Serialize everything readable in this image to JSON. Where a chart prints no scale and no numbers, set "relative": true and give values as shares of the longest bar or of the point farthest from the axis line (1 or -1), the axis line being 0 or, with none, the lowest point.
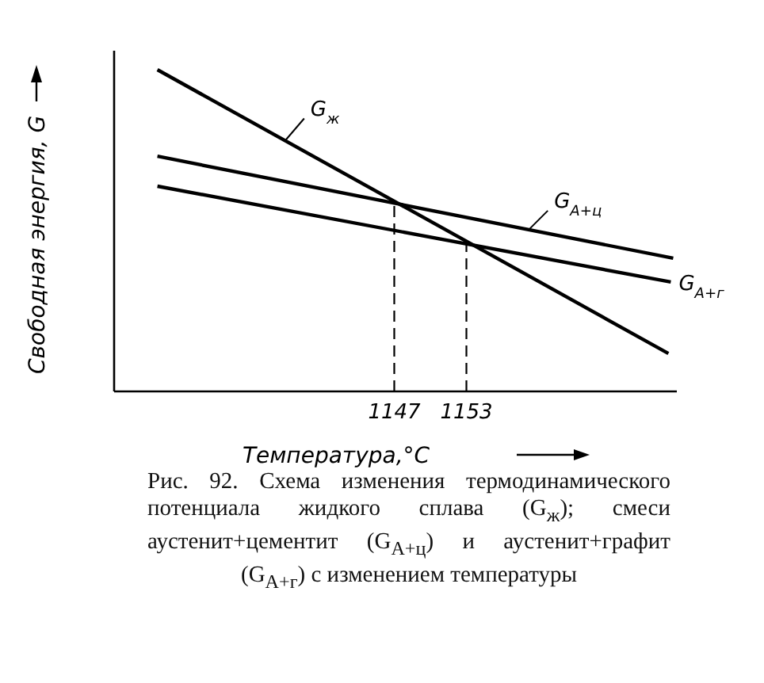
{
  "chart_data": {
    "type": "line",
    "relative": true,
    "xlabel": "Температура,°C",
    "ylabel": "Свободная энергия, G",
    "xlim": [
      1123.7,
      1170.5
    ],
    "xticks": [
      1147,
      1153
    ],
    "legend": false,
    "grid": false,
    "marker": "none",
    "line_style": "solid",
    "series": [
      {
        "name": "G$_{ж}$",
        "color": "#000000",
        "x": [
          1127.3,
          1169.8
        ],
        "values": [
          1,
          0.118
        ]
      },
      {
        "name": "G$_{А+ц}$",
        "color": "#000000",
        "x": [
          1127.3,
          1170.2
        ],
        "values": [
          0.731,
          0.414
        ]
      },
      {
        "name": "G$_{А+г}$",
        "color": "#000000",
        "x": [
          1127.3,
          1170.0
        ],
        "values": [
          0.638,
          0.34
        ]
      }
    ],
    "ref_lines": [
      {
        "axis": "x",
        "value": 1147,
        "line_style": "dashed",
        "color": "#000000"
      },
      {
        "axis": "x",
        "value": 1153,
        "line_style": "dashed",
        "color": "#000000"
      }
    ],
    "annotations": [
      "Рис. 92. Схема изменения термодинамического потенциала жидкого сплава (G$_{ж}$); смеси аустенит+цементит (G$_{А+ц}$) и аустенит+графит (G$_{А+г}$) с изменением температуры"
    ]
  }
}
